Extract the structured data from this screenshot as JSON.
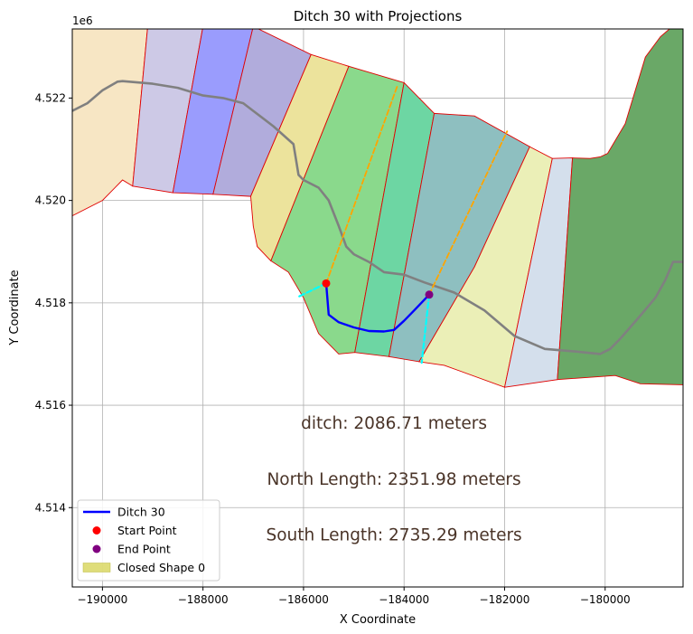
{
  "chart_data": {
    "type": "line",
    "title": "Ditch 30 with Projections",
    "xlabel": "X Coordinate",
    "ylabel": "Y Coordinate",
    "y_offset_label": "1e6",
    "xlim": [
      -190600,
      -178450
    ],
    "ylim": [
      4.51245,
      4.52335
    ],
    "y_scale": 1000000,
    "grid": true,
    "x_ticks": [
      -190000,
      -188000,
      -186000,
      -184000,
      -182000,
      -180000
    ],
    "x_tick_labels": [
      "−190000",
      "−188000",
      "−186000",
      "−184000",
      "−182000",
      "−180000"
    ],
    "y_ticks": [
      4.514,
      4.516,
      4.518,
      4.52,
      4.522
    ],
    "y_tick_labels": [
      "4.514",
      "4.516",
      "4.518",
      "4.520",
      "4.522"
    ],
    "legend_position": "lower-left",
    "legend": [
      {
        "label": "Ditch 30",
        "kind": "line",
        "color": "#0000ff"
      },
      {
        "label": "Start Point",
        "kind": "marker",
        "color": "#ff0000"
      },
      {
        "label": "End Point",
        "kind": "marker",
        "color": "#800080"
      },
      {
        "label": "Closed Shape 0",
        "kind": "patch",
        "color": "#d4d24e"
      }
    ],
    "annotations": [
      {
        "text": "ditch: 2086.71 meters",
        "x": -184200,
        "y": 4.51565
      },
      {
        "text": "North Length: 2351.98 meters",
        "x": -184200,
        "y": 4.51455
      },
      {
        "text": "South Length: 2735.29 meters",
        "x": -184200,
        "y": 4.51347
      }
    ],
    "polygons": [
      {
        "color": "#f7e6c4",
        "points": [
          [
            -190600,
            4.5197
          ],
          [
            -190000,
            4.52
          ],
          [
            -189600,
            4.5204
          ],
          [
            -189400,
            4.52028
          ],
          [
            -189100,
            4.5234
          ],
          [
            -190600,
            4.5234
          ]
        ]
      },
      {
        "color": "#cdc9e6",
        "points": [
          [
            -189400,
            4.52028
          ],
          [
            -188600,
            4.52015
          ],
          [
            -188000,
            4.5234
          ],
          [
            -189100,
            4.5234
          ]
        ]
      },
      {
        "color": "#9a9cfd",
        "points": [
          [
            -188600,
            4.52015
          ],
          [
            -187800,
            4.52012
          ],
          [
            -187000,
            4.5234
          ],
          [
            -188000,
            4.5234
          ]
        ]
      },
      {
        "color": "#b1acdc",
        "points": [
          [
            -187800,
            4.52012
          ],
          [
            -187050,
            4.52008
          ],
          [
            -185850,
            4.52285
          ],
          [
            -187000,
            4.5234
          ]
        ]
      },
      {
        "color": "#ece39c",
        "points": [
          [
            -187050,
            4.52008
          ],
          [
            -187000,
            4.5195
          ],
          [
            -186920,
            4.5191
          ],
          [
            -186650,
            4.51882
          ],
          [
            -185100,
            4.52262
          ],
          [
            -185850,
            4.52285
          ]
        ]
      },
      {
        "color": "#8ad98c",
        "points": [
          [
            -186650,
            4.51882
          ],
          [
            -186300,
            4.5186
          ],
          [
            -186000,
            4.5181
          ],
          [
            -185700,
            4.5174
          ],
          [
            -185300,
            4.517
          ],
          [
            -184980,
            4.51703
          ],
          [
            -184000,
            4.5223
          ],
          [
            -185100,
            4.52262
          ]
        ]
      },
      {
        "color": "#6dd6a3",
        "points": [
          [
            -184980,
            4.51703
          ],
          [
            -184300,
            4.51695
          ],
          [
            -183400,
            4.5217
          ],
          [
            -184000,
            4.5223
          ]
        ]
      },
      {
        "color": "#8ebfc0",
        "points": [
          [
            -184300,
            4.51695
          ],
          [
            -183700,
            4.51685
          ],
          [
            -182600,
            4.5187
          ],
          [
            -181500,
            4.52105
          ],
          [
            -182600,
            4.52165
          ],
          [
            -183400,
            4.5217
          ]
        ]
      },
      {
        "color": "#ebefb7",
        "points": [
          [
            -183700,
            4.51685
          ],
          [
            -183200,
            4.51678
          ],
          [
            -182000,
            4.51635
          ],
          [
            -181050,
            4.52082
          ],
          [
            -181500,
            4.52105
          ],
          [
            -182600,
            4.5187
          ]
        ]
      },
      {
        "color": "#d4dfec",
        "points": [
          [
            -182000,
            4.51635
          ],
          [
            -180950,
            4.5165
          ],
          [
            -180650,
            4.52083
          ],
          [
            -181050,
            4.52082
          ]
        ]
      },
      {
        "color": "#6aa867",
        "points": [
          [
            -180950,
            4.5165
          ],
          [
            -179800,
            4.51658
          ],
          [
            -179300,
            4.51642
          ],
          [
            -178450,
            4.5164
          ],
          [
            -178450,
            4.52335
          ],
          [
            -178720,
            4.52335
          ],
          [
            -178900,
            4.5232
          ],
          [
            -179200,
            4.5228
          ],
          [
            -179600,
            4.5215
          ],
          [
            -179950,
            4.52092
          ],
          [
            -180100,
            4.52085
          ],
          [
            -180300,
            4.52082
          ],
          [
            -180650,
            4.52083
          ]
        ]
      }
    ],
    "series": [
      {
        "name": "Ditch 30",
        "color": "#0000ff",
        "style": "solid",
        "width": 2.4,
        "x": [
          -185550,
          -185500,
          -185300,
          -185000,
          -184700,
          -184400,
          -184200,
          -184000,
          -183800,
          -183500
        ],
        "y": [
          4.51838,
          4.51777,
          4.51762,
          4.51752,
          4.51745,
          4.51744,
          4.51747,
          4.51765,
          4.51785,
          4.51816
        ]
      },
      {
        "color": "#808080",
        "style": "solid",
        "width": 2.6,
        "x": [
          -190600,
          -190300,
          -190000,
          -189700,
          -189600,
          -189000,
          -188500,
          -188000,
          -187600,
          -187200,
          -187000,
          -186600,
          -186200,
          -186150,
          -186100,
          -186000,
          -185700,
          -185500,
          -185300,
          -185150,
          -185000,
          -184700,
          -184400,
          -184000,
          -183600,
          -183000,
          -182400,
          -181800,
          -181200,
          -180600,
          -180100,
          -179900,
          -179700,
          -179300,
          -179000,
          -178800,
          -178650,
          -178450
        ],
        "y": [
          4.52175,
          4.5219,
          4.52215,
          4.52232,
          4.52233,
          4.52228,
          4.5222,
          4.52205,
          4.522,
          4.5219,
          4.52175,
          4.52145,
          4.5211,
          4.5208,
          4.5205,
          4.5204,
          4.52025,
          4.52,
          4.5195,
          4.5191,
          4.51895,
          4.5188,
          4.5186,
          4.51855,
          4.5184,
          4.5182,
          4.51785,
          4.51735,
          4.5171,
          4.51705,
          4.517,
          4.5171,
          4.5173,
          4.51775,
          4.5181,
          4.51845,
          4.5188,
          4.5188
        ]
      },
      {
        "color": "#ffa500",
        "style": "dashed",
        "width": 1.8,
        "x": [
          -185550,
          -184130
        ],
        "y": [
          4.51838,
          4.52225
        ]
      },
      {
        "color": "#ffa500",
        "style": "dashed",
        "width": 1.8,
        "x": [
          -183500,
          -181950
        ],
        "y": [
          4.51816,
          4.52135
        ]
      },
      {
        "color": "#00ffff",
        "style": "dashed",
        "width": 2.2,
        "x": [
          -185550,
          -186100
        ],
        "y": [
          4.51838,
          4.51812
        ]
      },
      {
        "color": "#00ffff",
        "style": "dashed",
        "width": 2.2,
        "x": [
          -183500,
          -183650
        ],
        "y": [
          4.51816,
          4.51683
        ]
      }
    ],
    "points": [
      {
        "name": "Start Point",
        "x": -185550,
        "y": 4.51838,
        "color": "#ff0000"
      },
      {
        "name": "End Point",
        "x": -183500,
        "y": 4.51816,
        "color": "#800080"
      }
    ]
  }
}
